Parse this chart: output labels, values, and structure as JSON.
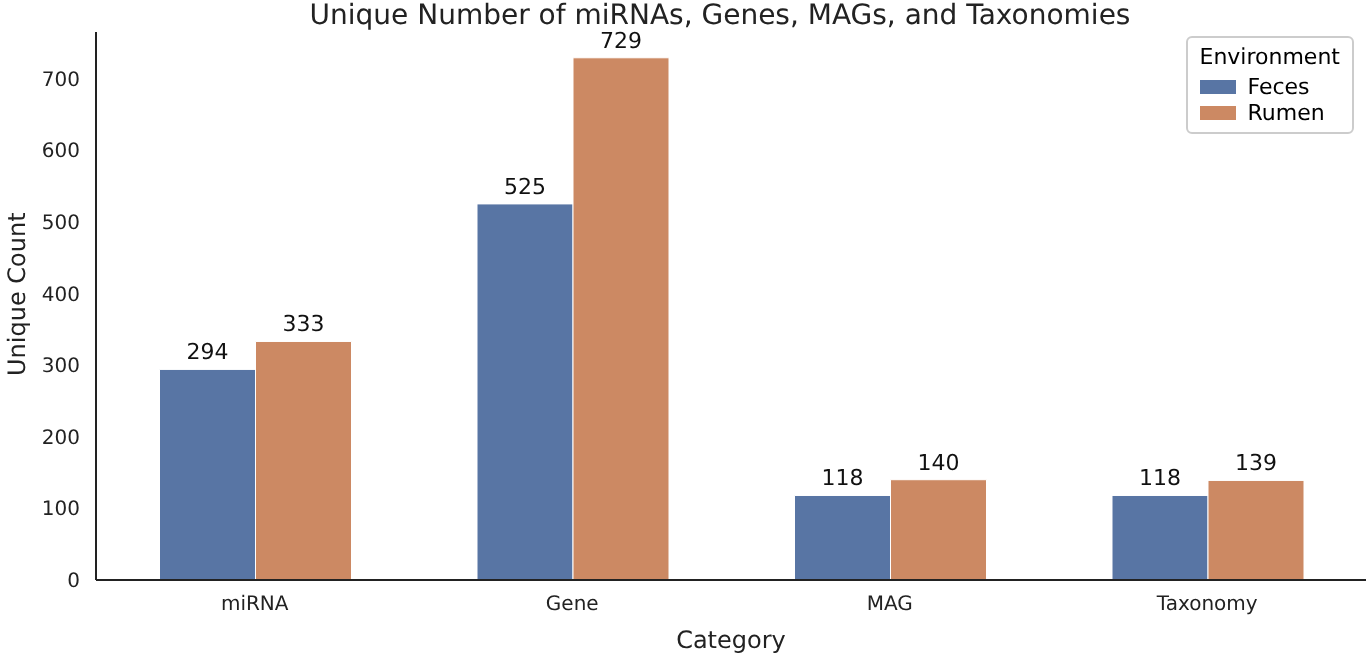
{
  "chart_data": {
    "type": "bar",
    "title": "Unique Number of miRNAs, Genes, MAGs, and Taxonomies",
    "xlabel": "Category",
    "ylabel": "Unique Count",
    "legend_title": "Environment",
    "categories": [
      "miRNA",
      "Gene",
      "MAG",
      "Taxonomy"
    ],
    "series": [
      {
        "name": "Feces",
        "color": "#5875a4",
        "values": [
          294,
          525,
          118,
          118
        ]
      },
      {
        "name": "Rumen",
        "color": "#cc8963",
        "values": [
          333,
          729,
          140,
          139
        ]
      }
    ],
    "ylim": [
      0,
      765
    ],
    "yticks": [
      0,
      100,
      200,
      300,
      400,
      500,
      600,
      700
    ],
    "grid": false,
    "legend": "top right",
    "data_labels": true
  }
}
